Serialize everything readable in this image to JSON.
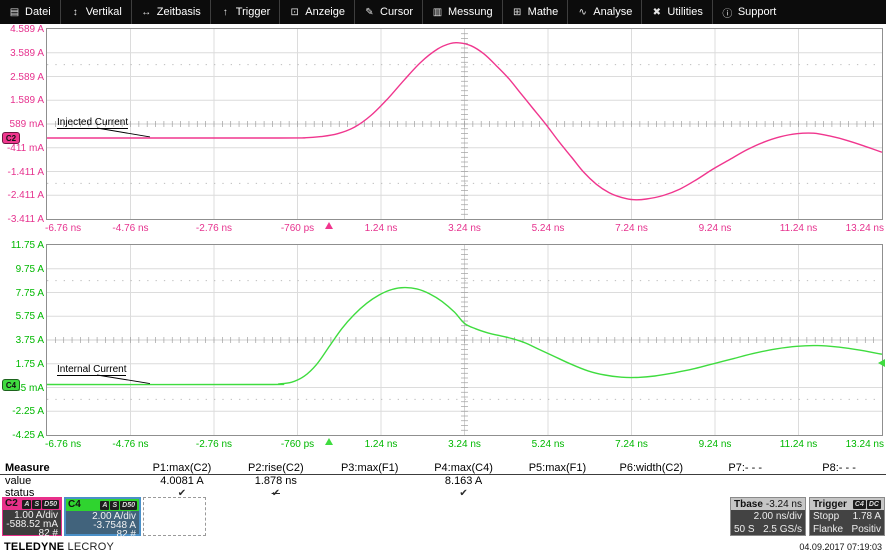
{
  "menu": {
    "items": [
      {
        "label": "Datei",
        "icon": "file-icon",
        "glyph": "▤"
      },
      {
        "label": "Vertikal",
        "icon": "vertical-arrows-icon",
        "glyph": "↕"
      },
      {
        "label": "Zeitbasis",
        "icon": "horizontal-arrows-icon",
        "glyph": "↔"
      },
      {
        "label": "Trigger",
        "icon": "trigger-arrow-icon",
        "glyph": "↑"
      },
      {
        "label": "Anzeige",
        "icon": "display-icon",
        "glyph": "⊡"
      },
      {
        "label": "Cursor",
        "icon": "cursor-icon",
        "glyph": "✎"
      },
      {
        "label": "Messung",
        "icon": "measure-icon",
        "glyph": "▥"
      },
      {
        "label": "Mathe",
        "icon": "math-icon",
        "glyph": "⊞"
      },
      {
        "label": "Analyse",
        "icon": "analysis-icon",
        "glyph": "∿"
      },
      {
        "label": "Utilities",
        "icon": "utilities-icon",
        "glyph": "✖"
      },
      {
        "label": "Support",
        "icon": "support-icon",
        "glyph": "ⓘ"
      }
    ]
  },
  "chart_data": [
    {
      "type": "line",
      "title": "Injected Current",
      "channel": "C2",
      "wave_color": "#f0368e",
      "label_color": "#e6328e",
      "x_range_ns": [
        -6.76,
        13.24
      ],
      "y_range_a": [
        -3.411,
        4.589
      ],
      "x_labels": [
        "-6.76 ns",
        "-4.76 ns",
        "-2.76 ns",
        "-760 ps",
        "1.24 ns",
        "3.24 ns",
        "5.24 ns",
        "7.24 ns",
        "9.24 ns",
        "11.24 ns",
        "13.24 ns"
      ],
      "y_labels": [
        "4.589 A",
        "3.589 A",
        "2.589 A",
        "1.589 A",
        "589 mA",
        "-411 mA",
        "-1.411 A",
        "-2.411 A",
        "-3.411 A"
      ],
      "volts_per_div": "1.00 A/div",
      "trigger_time_ns": 0,
      "points": [
        [
          -6.76,
          0
        ],
        [
          -1.2,
          0
        ],
        [
          -0.6,
          0.01
        ],
        [
          -0.2,
          0.06
        ],
        [
          0.2,
          0.18
        ],
        [
          0.6,
          0.45
        ],
        [
          1.0,
          0.95
        ],
        [
          1.4,
          1.65
        ],
        [
          1.8,
          2.45
        ],
        [
          2.2,
          3.2
        ],
        [
          2.6,
          3.75
        ],
        [
          2.9,
          3.98
        ],
        [
          3.1,
          4.01
        ],
        [
          3.4,
          3.88
        ],
        [
          3.7,
          3.55
        ],
        [
          4.0,
          3.05
        ],
        [
          4.3,
          2.5
        ],
        [
          4.6,
          1.85
        ],
        [
          4.9,
          1.2
        ],
        [
          5.2,
          0.55
        ],
        [
          5.5,
          -0.15
        ],
        [
          5.8,
          -0.8
        ],
        [
          6.1,
          -1.45
        ],
        [
          6.4,
          -1.95
        ],
        [
          6.7,
          -2.3
        ],
        [
          7.0,
          -2.5
        ],
        [
          7.3,
          -2.6
        ],
        [
          7.6,
          -2.57
        ],
        [
          8.0,
          -2.42
        ],
        [
          8.4,
          -2.15
        ],
        [
          8.8,
          -1.75
        ],
        [
          9.2,
          -1.3
        ],
        [
          9.6,
          -0.9
        ],
        [
          10.0,
          -0.5
        ],
        [
          10.4,
          -0.18
        ],
        [
          10.8,
          0.05
        ],
        [
          11.2,
          0.18
        ],
        [
          11.6,
          0.2
        ],
        [
          12.0,
          0.08
        ],
        [
          12.4,
          -0.1
        ],
        [
          12.8,
          -0.33
        ],
        [
          13.24,
          -0.6
        ]
      ]
    },
    {
      "type": "line",
      "title": "Internal Current",
      "channel": "C4",
      "wave_color": "#3fdc3f",
      "label_color": "#00b800",
      "x_range_ns": [
        -6.76,
        13.24
      ],
      "y_range_a": [
        -4.25,
        11.75
      ],
      "x_labels": [
        "-6.76 ns",
        "-4.76 ns",
        "-2.76 ns",
        "-760 ps",
        "1.24 ns",
        "3.24 ns",
        "5.24 ns",
        "7.24 ns",
        "9.24 ns",
        "11.24 ns",
        "13.24 ns"
      ],
      "y_labels": [
        "11.75 A",
        "9.75 A",
        "7.75 A",
        "5.75 A",
        "3.75 A",
        "1.75 A",
        "-245 mA",
        "-2.25 A",
        "-4.25 A"
      ],
      "volts_per_div": "2.00 A/div",
      "trigger_time_ns": 0,
      "trigger_level_a": 1.78,
      "points": [
        [
          -6.76,
          0
        ],
        [
          -1.6,
          0
        ],
        [
          -1.2,
          0.05
        ],
        [
          -0.9,
          0.2
        ],
        [
          -0.6,
          0.7
        ],
        [
          -0.3,
          1.7
        ],
        [
          0,
          3.2
        ],
        [
          0.3,
          4.7
        ],
        [
          0.6,
          5.9
        ],
        [
          0.9,
          6.85
        ],
        [
          1.2,
          7.55
        ],
        [
          1.5,
          8.0
        ],
        [
          1.8,
          8.16
        ],
        [
          2.1,
          8.05
        ],
        [
          2.4,
          7.65
        ],
        [
          2.7,
          7.0
        ],
        [
          3.0,
          6.1
        ],
        [
          3.24,
          5.15
        ],
        [
          3.5,
          4.7
        ],
        [
          3.8,
          4.35
        ],
        [
          4.1,
          4.1
        ],
        [
          4.4,
          3.85
        ],
        [
          4.7,
          3.5
        ],
        [
          5.0,
          3.0
        ],
        [
          5.4,
          2.35
        ],
        [
          5.8,
          1.7
        ],
        [
          6.2,
          1.15
        ],
        [
          6.6,
          0.8
        ],
        [
          7.0,
          0.62
        ],
        [
          7.4,
          0.6
        ],
        [
          7.8,
          0.72
        ],
        [
          8.2,
          0.95
        ],
        [
          8.7,
          1.3
        ],
        [
          9.2,
          1.75
        ],
        [
          9.7,
          2.2
        ],
        [
          10.2,
          2.65
        ],
        [
          10.7,
          3.0
        ],
        [
          11.2,
          3.22
        ],
        [
          11.7,
          3.28
        ],
        [
          12.2,
          3.15
        ],
        [
          12.7,
          2.9
        ],
        [
          13.24,
          2.55
        ]
      ]
    }
  ],
  "measure": {
    "title": "Measure",
    "row_labels": [
      "value",
      "status"
    ],
    "columns": [
      {
        "header": "P1:max(C2)",
        "value": "4.0081 A",
        "status": "check"
      },
      {
        "header": "P2:rise(C2)",
        "value": "1.878 ns",
        "status": "check-crossed"
      },
      {
        "header": "P3:max(F1)",
        "value": "",
        "status": ""
      },
      {
        "header": "P4:max(C4)",
        "value": "8.163 A",
        "status": "check"
      },
      {
        "header": "P5:max(F1)",
        "value": "",
        "status": ""
      },
      {
        "header": "P6:width(C2)",
        "value": "",
        "status": ""
      },
      {
        "header": "P7:- - -",
        "value": "",
        "status": ""
      },
      {
        "header": "P8:- - -",
        "value": "",
        "status": ""
      }
    ],
    "status_glyph": "✔"
  },
  "descriptors": {
    "c2": {
      "label": "C2",
      "badges": [
        "A",
        "S",
        "D50"
      ],
      "lines": [
        "1.00 A/div",
        "-588.52 mA",
        "82 #"
      ],
      "accent": "#e8308a",
      "body": "#3d3d3d"
    },
    "c4": {
      "label": "C4",
      "badges": [
        "A",
        "S",
        "D50"
      ],
      "lines": [
        "2.00 A/div",
        "-3.7548 A",
        "82 #"
      ],
      "accent": "#2fd42f",
      "body": "#41637c",
      "selected_border": "#4a90c8"
    },
    "tbase": {
      "label": "Tbase",
      "value": "-3.24 ns",
      "line1": "2.00 ns/div",
      "line2_left": "50 S",
      "line2_right": "2.5 GS/s"
    },
    "trigger": {
      "label": "Trigger",
      "badges": [
        "C4",
        "DC"
      ],
      "rows": [
        [
          "Stopp",
          "1.78 A"
        ],
        [
          "Flanke",
          "Positiv"
        ]
      ]
    }
  },
  "footer": {
    "brand_bold": "TELEDYNE",
    "brand_light": "LECROY",
    "datetime": "04.09.2017 07:19:03"
  }
}
